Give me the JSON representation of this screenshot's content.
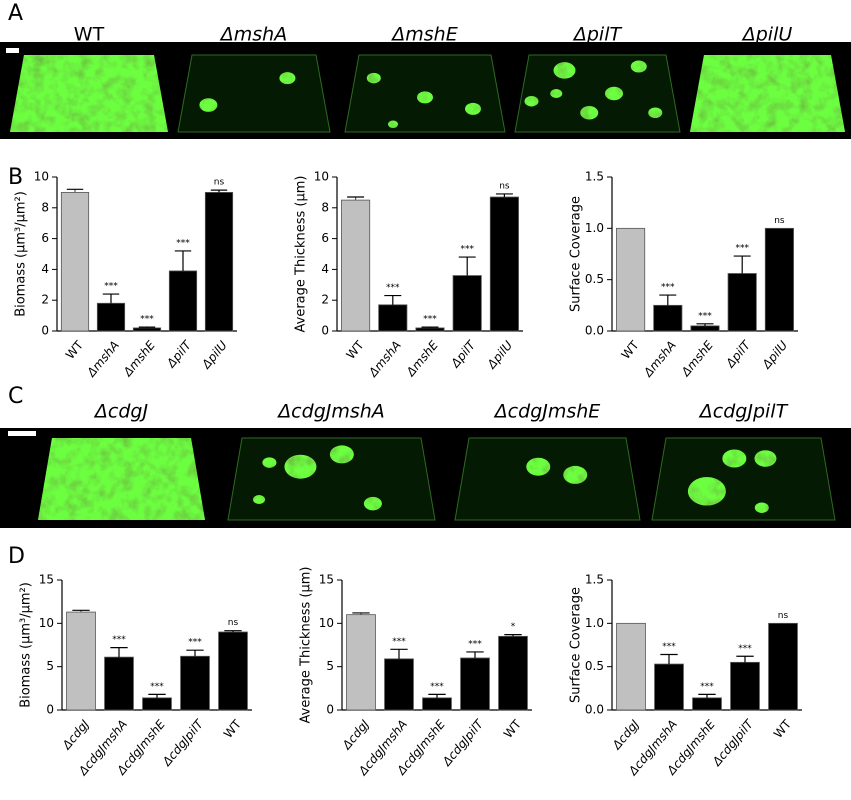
{
  "panel_labels": [
    "A",
    "B",
    "C",
    "D"
  ],
  "images_A": [
    "WT",
    "ΔmshA",
    "ΔmshE",
    "ΔpilT",
    "ΔpilU"
  ],
  "images_C": [
    "ΔcdgJ",
    "ΔcdgJmshA",
    "ΔcdgJmshE",
    "ΔcdgJpilT"
  ],
  "chart_data": [
    {
      "type": "bar",
      "ylabel": "Biomass (µm³/µm²)",
      "categories": [
        "WT",
        "ΔmshA",
        "ΔmshE",
        "ΔpilT",
        "ΔpilU"
      ],
      "values": [
        9.0,
        1.8,
        0.2,
        3.9,
        9.0
      ],
      "errors": [
        0.2,
        0.6,
        0.05,
        1.3,
        0.15
      ],
      "annotations": [
        null,
        "***",
        "***",
        "***",
        "ns"
      ],
      "colors": [
        "#c0c0c0",
        "#000000",
        "#000000",
        "#000000",
        "#000000"
      ],
      "ylim": [
        0,
        10
      ],
      "yticks": [
        0,
        2,
        4,
        6,
        8,
        10
      ]
    },
    {
      "type": "bar",
      "ylabel": "Average Thickness (µm)",
      "categories": [
        "WT",
        "ΔmshA",
        "ΔmshE",
        "ΔpilT",
        "ΔpilU"
      ],
      "values": [
        8.5,
        1.7,
        0.2,
        3.6,
        8.7
      ],
      "errors": [
        0.2,
        0.6,
        0.05,
        1.2,
        0.2
      ],
      "annotations": [
        null,
        "***",
        "***",
        "***",
        "ns"
      ],
      "colors": [
        "#c0c0c0",
        "#000000",
        "#000000",
        "#000000",
        "#000000"
      ],
      "ylim": [
        0,
        10
      ],
      "yticks": [
        0,
        2,
        4,
        6,
        8,
        10
      ]
    },
    {
      "type": "bar",
      "ylabel": "Surface Coverage",
      "categories": [
        "WT",
        "ΔmshA",
        "ΔmshE",
        "ΔpilT",
        "ΔpilU"
      ],
      "values": [
        1.0,
        0.25,
        0.05,
        0.56,
        1.0
      ],
      "errors": [
        0,
        0.1,
        0.02,
        0.17,
        0
      ],
      "annotations": [
        null,
        "***",
        "***",
        "***",
        "ns"
      ],
      "colors": [
        "#c0c0c0",
        "#000000",
        "#000000",
        "#000000",
        "#000000"
      ],
      "ylim": [
        0,
        1.5
      ],
      "yticks": [
        {
          "value": 0,
          "label": "0.0"
        },
        0.5,
        {
          "value": 1,
          "label": "1.0"
        },
        1.5
      ]
    },
    {
      "type": "bar",
      "ylabel": "Biomass (µm³/µm²)",
      "categories": [
        "ΔcdgJ",
        "ΔcdgJmshA",
        "ΔcdgJmshE",
        "ΔcdgJpilT",
        "WT"
      ],
      "values": [
        11.3,
        6.1,
        1.4,
        6.2,
        9.0
      ],
      "errors": [
        0.2,
        1.1,
        0.4,
        0.7,
        0.15
      ],
      "annotations": [
        null,
        "***",
        "***",
        "***",
        "ns"
      ],
      "colors": [
        "#c0c0c0",
        "#000000",
        "#000000",
        "#000000",
        "#000000"
      ],
      "ylim": [
        0,
        15
      ],
      "yticks": [
        0,
        5,
        10,
        15
      ]
    },
    {
      "type": "bar",
      "ylabel": "Average Thickness (µm)",
      "categories": [
        "ΔcdgJ",
        "ΔcdgJmshA",
        "ΔcdgJmshE",
        "ΔcdgJpilT",
        "WT"
      ],
      "values": [
        11.0,
        5.9,
        1.4,
        6.0,
        8.5
      ],
      "errors": [
        0.2,
        1.1,
        0.4,
        0.7,
        0.2
      ],
      "annotations": [
        null,
        "***",
        "***",
        "***",
        "*"
      ],
      "colors": [
        "#c0c0c0",
        "#000000",
        "#000000",
        "#000000",
        "#000000"
      ],
      "ylim": [
        0,
        15
      ],
      "yticks": [
        0,
        5,
        10,
        15
      ]
    },
    {
      "type": "bar",
      "ylabel": "Surface Coverage",
      "categories": [
        "ΔcdgJ",
        "ΔcdgJmshA",
        "ΔcdgJmshE",
        "ΔcdgJpilT",
        "WT"
      ],
      "values": [
        1.0,
        0.53,
        0.14,
        0.55,
        1.0
      ],
      "errors": [
        0,
        0.11,
        0.04,
        0.07,
        0
      ],
      "annotations": [
        null,
        "***",
        "***",
        "***",
        "ns"
      ],
      "colors": [
        "#c0c0c0",
        "#000000",
        "#000000",
        "#000000",
        "#000000"
      ],
      "ylim": [
        0,
        1.5
      ],
      "yticks": [
        {
          "value": 0,
          "label": "0.0"
        },
        0.5,
        {
          "value": 1,
          "label": "1.0"
        },
        1.5
      ]
    }
  ]
}
